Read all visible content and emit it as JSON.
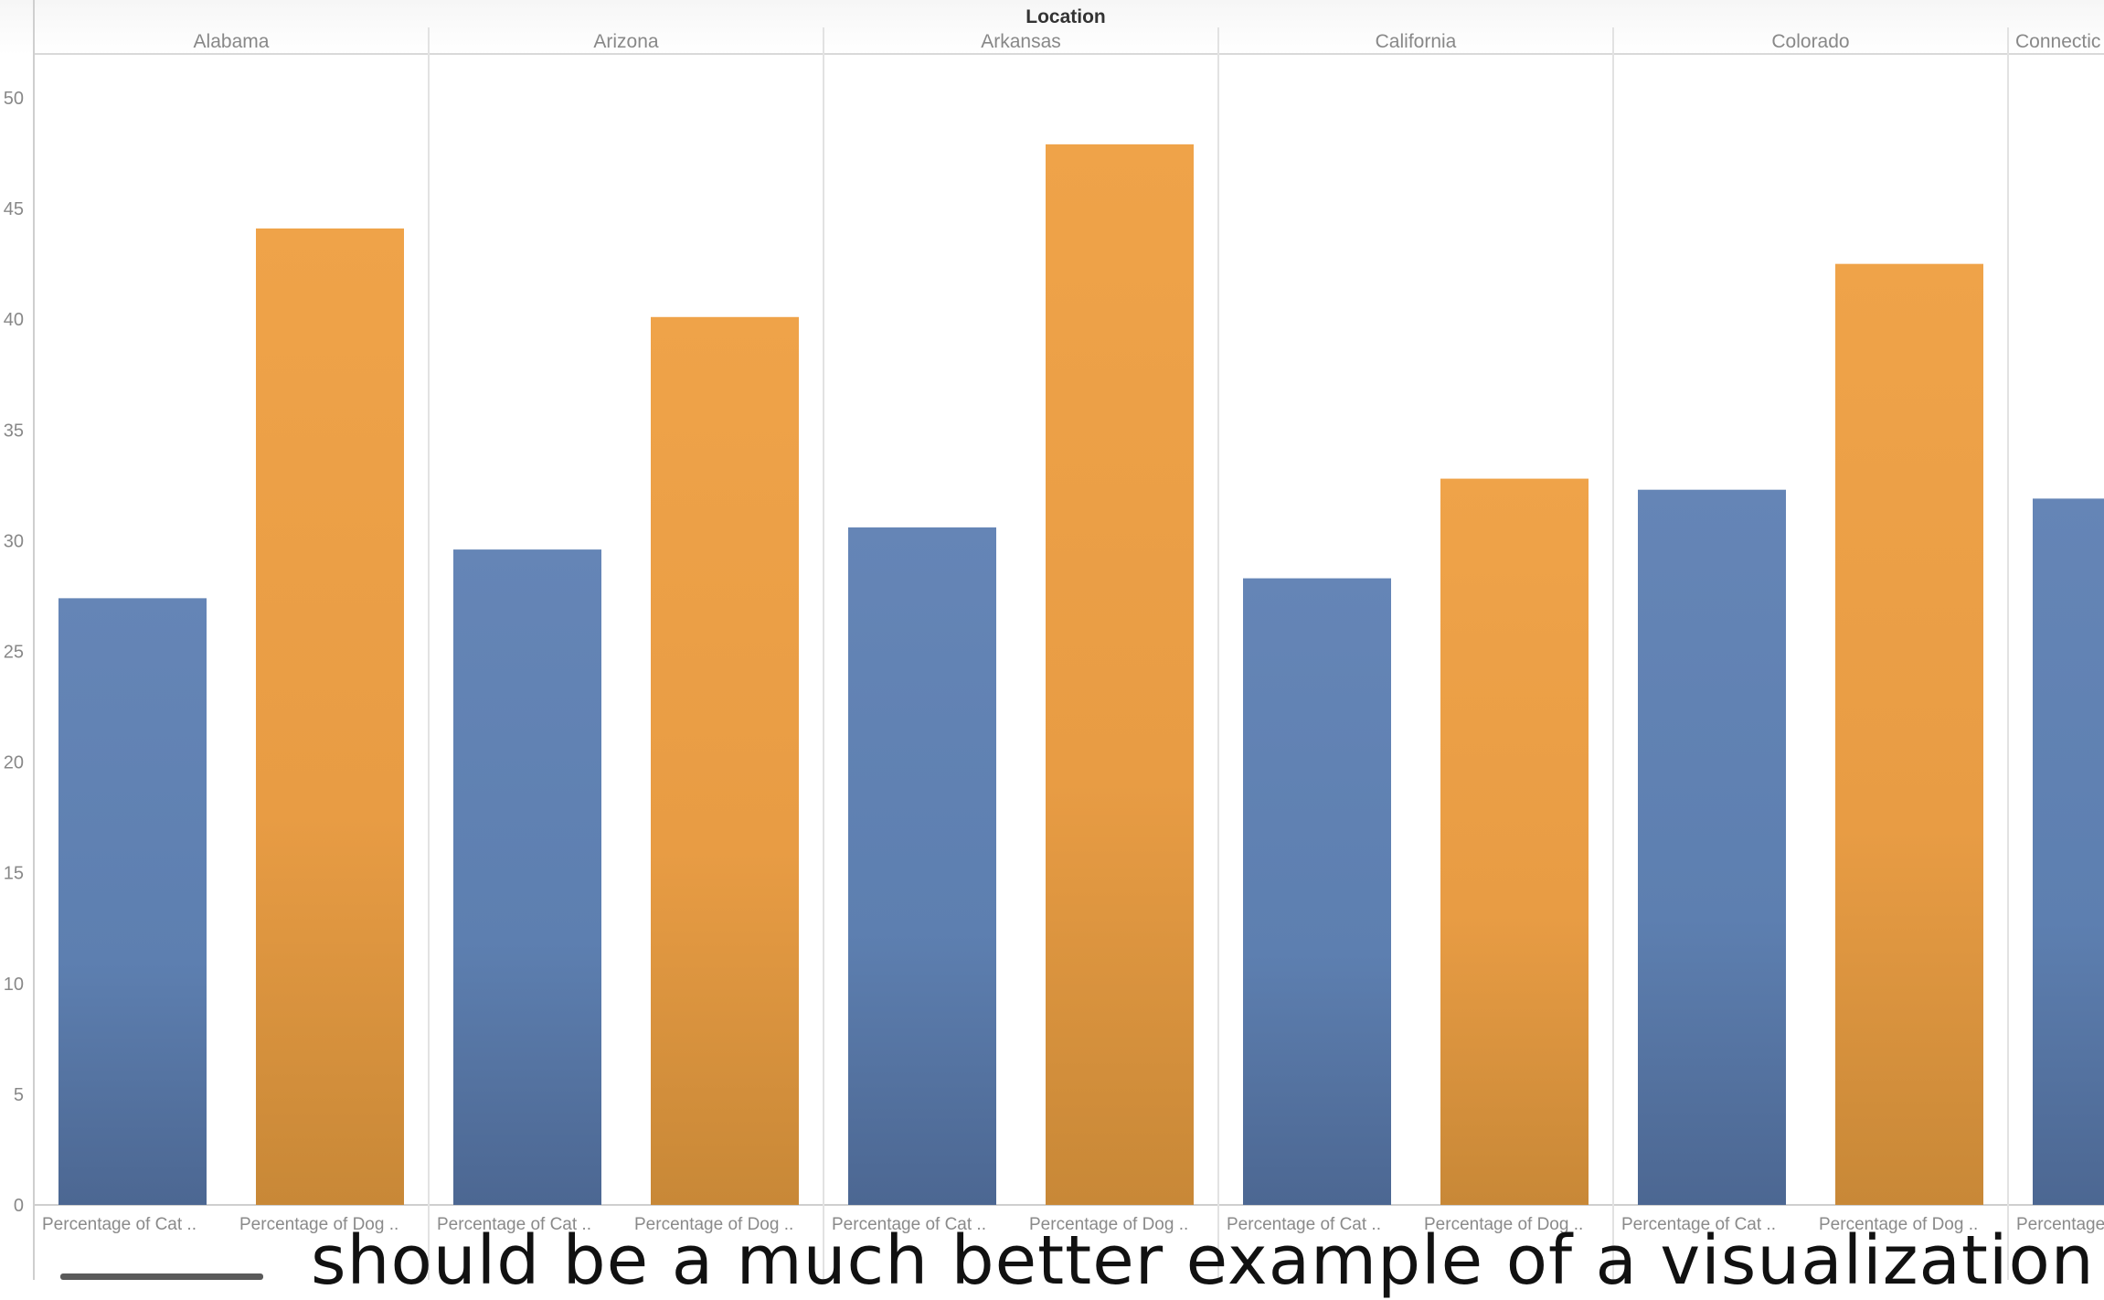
{
  "chart_data": {
    "type": "bar",
    "title": "Location",
    "categories": [
      "Alabama",
      "Arizona",
      "Arkansas",
      "California",
      "Colorado",
      "Connectic"
    ],
    "bar_labels": [
      "Percentage of Cat ..",
      "Percentage of Dog .."
    ],
    "series": [
      {
        "name": "Percentage of Cat ..",
        "color": "#5d7fb0",
        "values": [
          27.4,
          29.6,
          30.6,
          28.3,
          32.3,
          31.9
        ]
      },
      {
        "name": "Percentage of Dog ..",
        "color": "#ec9f47",
        "values": [
          44.1,
          40.1,
          47.9,
          32.8,
          42.5,
          null
        ]
      }
    ],
    "yticks": [
      0,
      5,
      10,
      15,
      20,
      25,
      30,
      35,
      40,
      45,
      50
    ],
    "ylim": [
      0,
      50
    ],
    "grid": false,
    "xlabel": "",
    "ylabel": ""
  },
  "caption": "should be a much better example of a visualization"
}
